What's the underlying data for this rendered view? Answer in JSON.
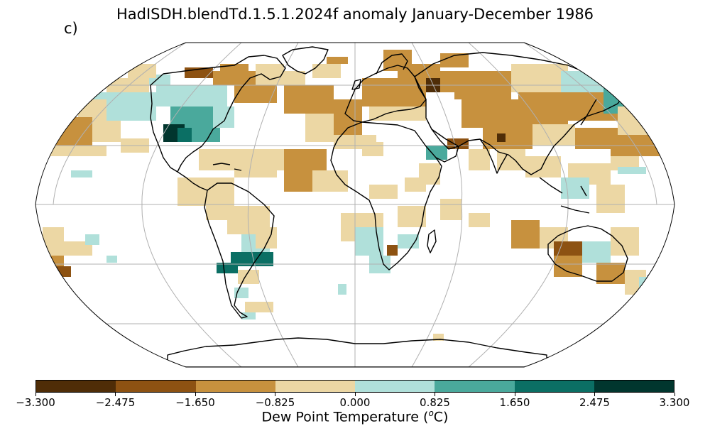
{
  "title": "HadISDH.blendTd.1.5.1.2024f anomaly January-December 1986",
  "panel_label": "c)",
  "colorbar": {
    "label_prefix": "Dew Point Temperature (",
    "label_unit": "o",
    "label_suffix": "C)",
    "tick_labels": [
      "−3.300",
      "−2.475",
      "−1.650",
      "−0.825",
      "0.000",
      "0.825",
      "1.650",
      "2.475",
      "3.300"
    ],
    "colors": [
      "#4f2d07",
      "#8d5212",
      "#c7913e",
      "#ecd7a4",
      "#b0e0da",
      "#4aa99c",
      "#0b6f64",
      "#01362e"
    ]
  },
  "map_data": {
    "projection": "Robinson",
    "variable": "Dew Point Temperature anomaly",
    "period": "January-December 1986",
    "gridline_longitudes": [
      -150,
      -100,
      -50,
      0,
      50,
      100,
      150
    ],
    "gridline_latitudes": [
      -60,
      -30,
      0,
      30,
      60
    ],
    "cell_degrees": 5
  }
}
